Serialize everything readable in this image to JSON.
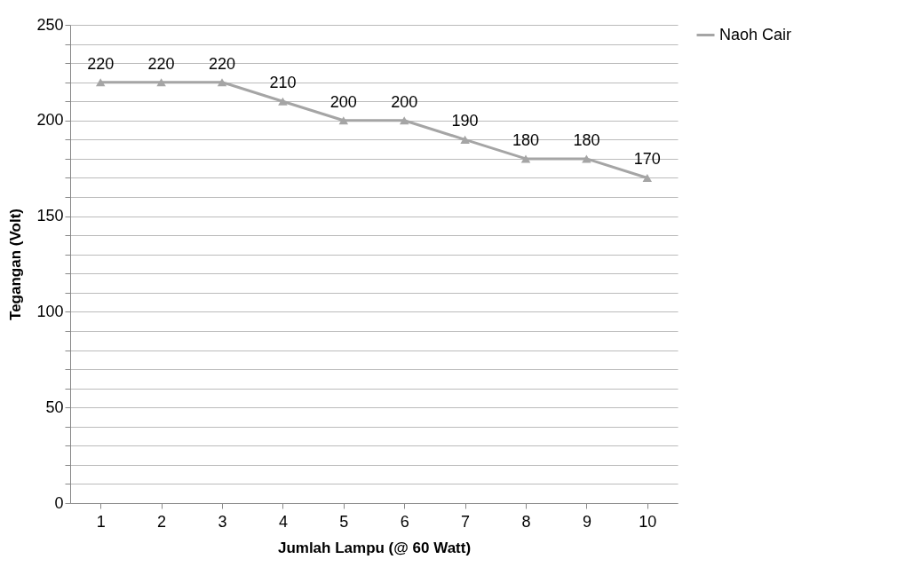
{
  "chart_data": {
    "type": "line",
    "xlabel": "Jumlah Lampu (@ 60 Watt)",
    "ylabel": "Tegangan (Volt)",
    "categories": [
      "1",
      "2",
      "3",
      "4",
      "5",
      "6",
      "7",
      "8",
      "9",
      "10"
    ],
    "series": [
      {
        "name": "Naoh Cair",
        "color": "#a5a5a5",
        "values": [
          220,
          220,
          220,
          210,
          200,
          200,
          190,
          180,
          180,
          170
        ]
      }
    ],
    "ylim": [
      0,
      250
    ],
    "yticks": [
      0,
      {
        "value": 10,
        "label": null
      },
      {
        "value": 20,
        "label": null
      },
      {
        "value": 30,
        "label": null
      },
      {
        "value": 40,
        "label": null
      },
      50,
      {
        "value": 60,
        "label": null
      },
      {
        "value": 70,
        "label": null
      },
      {
        "value": 80,
        "label": null
      },
      {
        "value": 90,
        "label": null
      },
      100,
      {
        "value": 110,
        "label": null
      },
      {
        "value": 120,
        "label": null
      },
      {
        "value": 130,
        "label": null
      },
      {
        "value": 140,
        "label": null
      },
      150,
      {
        "value": 160,
        "label": null
      },
      {
        "value": 170,
        "label": null
      },
      {
        "value": 180,
        "label": null
      },
      {
        "value": 190,
        "label": null
      },
      200,
      {
        "value": 210,
        "label": null
      },
      {
        "value": 220,
        "label": null
      },
      {
        "value": 230,
        "label": null
      },
      {
        "value": 240,
        "label": null
      },
      250
    ],
    "grid": "y",
    "legend": "right",
    "marker": "triangle",
    "line_style": "solid",
    "data_labels": true
  }
}
